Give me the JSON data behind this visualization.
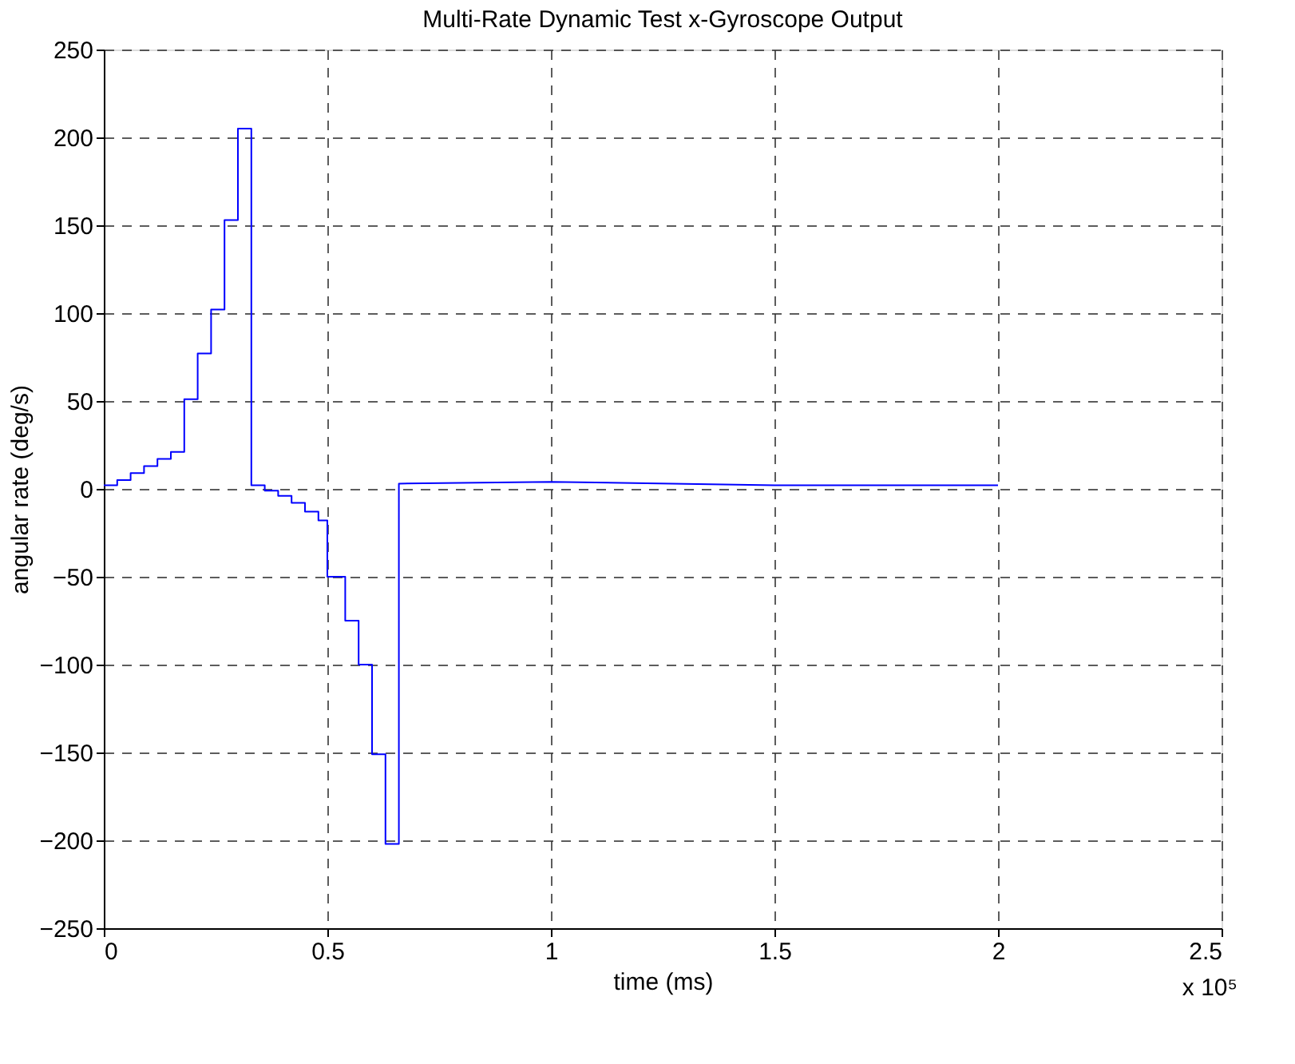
{
  "chart_data": {
    "type": "line",
    "title": "Multi-Rate Dynamic Test x-Gyroscope Output",
    "xlabel": "time (ms)",
    "ylabel": "angular rate (deg/s)",
    "x": [
      0,
      0.03,
      0.03,
      0.06,
      0.06,
      0.09,
      0.09,
      0.12,
      0.12,
      0.15,
      0.15,
      0.18,
      0.18,
      0.21,
      0.21,
      0.24,
      0.24,
      0.27,
      0.27,
      0.3,
      0.3,
      0.33,
      0.33,
      0.36,
      0.36,
      0.39,
      0.39,
      0.42,
      0.42,
      0.45,
      0.45,
      0.48,
      0.48,
      0.5,
      0.5,
      0.54,
      0.54,
      0.57,
      0.57,
      0.6,
      0.6,
      0.63,
      0.63,
      0.66,
      0.66,
      1.0,
      1.5,
      2.0
    ],
    "series": [
      {
        "color": "#0000ff",
        "values": [
          2,
          2,
          5,
          5,
          9,
          9,
          13,
          13,
          17,
          17,
          21,
          21,
          51,
          51,
          77,
          77,
          102,
          102,
          153,
          153,
          205,
          205,
          2,
          2,
          -1,
          -1,
          -4,
          -4,
          -8,
          -8,
          -13,
          -13,
          -18,
          -18,
          -50,
          -50,
          -75,
          -75,
          -100,
          -100,
          -151,
          -151,
          -202,
          -202,
          3,
          4,
          2,
          2
        ]
      }
    ],
    "xlim": [
      0,
      2.5
    ],
    "xticks": [
      0,
      0.5,
      1,
      1.5,
      2,
      2.5
    ],
    "ylim": [
      -250,
      250
    ],
    "yticks": [
      -250,
      -200,
      -150,
      -100,
      -50,
      0,
      50,
      100,
      150,
      200,
      250
    ],
    "grid": true,
    "marker": "none",
    "line_style": "solid",
    "annotations": [
      "x 10⁵"
    ]
  }
}
